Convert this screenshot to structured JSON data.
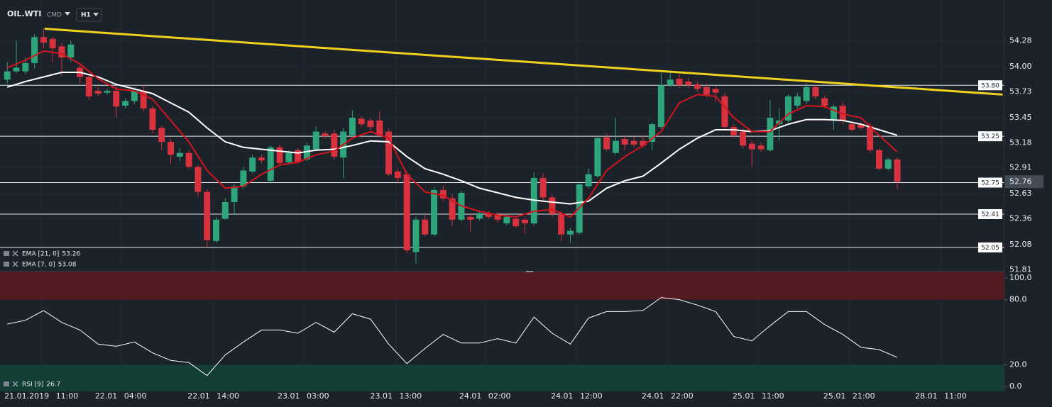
{
  "header": {
    "symbol": "OIL.WTI",
    "kind": "CMD",
    "timeframe": "H1"
  },
  "chart_data": {
    "type": "candlestick",
    "up_color": "#2ea57b",
    "down_color": "#d9323f",
    "candles": [
      [
        53.86,
        54.05,
        53.82,
        53.95
      ],
      [
        53.95,
        54.28,
        53.93,
        53.99
      ],
      [
        53.95,
        54.1,
        53.92,
        54.04
      ],
      [
        54.04,
        54.35,
        53.98,
        54.32
      ],
      [
        54.32,
        54.41,
        54.2,
        54.26
      ],
      [
        54.3,
        54.32,
        54.05,
        54.2
      ],
      [
        54.22,
        54.26,
        53.9,
        54.1
      ],
      [
        54.1,
        54.28,
        54.05,
        54.24
      ],
      [
        53.99,
        54.02,
        53.82,
        53.89
      ],
      [
        53.89,
        53.92,
        53.64,
        53.68
      ],
      [
        53.74,
        53.78,
        53.68,
        53.71
      ],
      [
        53.72,
        53.76,
        53.7,
        53.74
      ],
      [
        53.74,
        53.78,
        53.45,
        53.57
      ],
      [
        53.58,
        53.66,
        53.55,
        53.63
      ],
      [
        53.63,
        53.78,
        53.6,
        53.74
      ],
      [
        53.74,
        53.8,
        53.52,
        53.55
      ],
      [
        53.55,
        53.58,
        53.28,
        53.32
      ],
      [
        53.34,
        53.37,
        53.1,
        53.19
      ],
      [
        53.19,
        53.22,
        52.95,
        53.05
      ],
      [
        53.03,
        53.12,
        52.98,
        53.07
      ],
      [
        53.07,
        53.1,
        52.9,
        52.92
      ],
      [
        52.92,
        52.94,
        52.6,
        52.65
      ],
      [
        52.65,
        52.68,
        52.05,
        52.13
      ],
      [
        52.12,
        52.38,
        52.1,
        52.35
      ],
      [
        52.36,
        52.58,
        52.35,
        52.54
      ],
      [
        52.54,
        52.74,
        52.4,
        52.71
      ],
      [
        52.71,
        52.92,
        52.68,
        52.88
      ],
      [
        52.87,
        53.05,
        52.85,
        53.02
      ],
      [
        53.02,
        53.05,
        52.96,
        52.99
      ],
      [
        52.77,
        53.15,
        52.74,
        53.13
      ],
      [
        53.13,
        53.16,
        52.94,
        52.96
      ],
      [
        52.97,
        53.1,
        52.95,
        53.07
      ],
      [
        53.1,
        53.12,
        52.95,
        52.97
      ],
      [
        53.0,
        53.18,
        52.98,
        53.15
      ],
      [
        53.11,
        53.35,
        53.09,
        53.3
      ],
      [
        53.28,
        53.31,
        53.22,
        53.25
      ],
      [
        53.28,
        53.32,
        53.0,
        53.03
      ],
      [
        53.02,
        53.34,
        52.8,
        53.3
      ],
      [
        53.26,
        53.53,
        53.24,
        53.45
      ],
      [
        53.44,
        53.47,
        53.35,
        53.38
      ],
      [
        53.42,
        53.45,
        53.32,
        53.35
      ],
      [
        53.42,
        53.52,
        53.24,
        53.26
      ],
      [
        53.3,
        53.33,
        52.82,
        52.84
      ],
      [
        52.87,
        52.9,
        52.74,
        52.8
      ],
      [
        52.84,
        52.87,
        51.99,
        52.02
      ],
      [
        52.0,
        52.38,
        51.88,
        52.35
      ],
      [
        52.35,
        52.4,
        52.17,
        52.19
      ],
      [
        52.19,
        52.7,
        52.17,
        52.67
      ],
      [
        52.67,
        52.72,
        52.55,
        52.58
      ],
      [
        52.58,
        52.62,
        52.28,
        52.35
      ],
      [
        52.35,
        52.66,
        52.33,
        52.64
      ],
      [
        52.38,
        52.42,
        52.22,
        52.35
      ],
      [
        52.36,
        52.45,
        52.34,
        52.42
      ],
      [
        52.42,
        52.45,
        52.36,
        52.38
      ],
      [
        52.4,
        52.43,
        52.32,
        52.35
      ],
      [
        52.31,
        52.41,
        52.29,
        52.38
      ],
      [
        52.36,
        52.39,
        52.26,
        52.28
      ],
      [
        52.35,
        52.38,
        52.2,
        52.31
      ],
      [
        52.31,
        52.86,
        52.28,
        52.8
      ],
      [
        52.8,
        52.85,
        52.56,
        52.59
      ],
      [
        52.59,
        52.62,
        52.38,
        52.41
      ],
      [
        52.41,
        52.44,
        52.12,
        52.19
      ],
      [
        52.19,
        52.26,
        52.1,
        52.23
      ],
      [
        52.21,
        52.76,
        52.19,
        52.73
      ],
      [
        52.71,
        52.9,
        52.69,
        52.84
      ],
      [
        52.82,
        53.26,
        52.8,
        53.23
      ],
      [
        53.24,
        53.28,
        53.09,
        53.11
      ],
      [
        53.07,
        53.45,
        53.05,
        53.2
      ],
      [
        53.22,
        53.26,
        53.1,
        53.16
      ],
      [
        53.2,
        53.24,
        53.13,
        53.16
      ],
      [
        53.2,
        53.26,
        53.12,
        53.15
      ],
      [
        53.19,
        53.4,
        53.1,
        53.38
      ],
      [
        53.35,
        53.93,
        53.33,
        53.8
      ],
      [
        53.8,
        53.93,
        53.78,
        53.86
      ],
      [
        53.87,
        53.92,
        53.77,
        53.8
      ],
      [
        53.84,
        53.88,
        53.77,
        53.8
      ],
      [
        53.81,
        53.84,
        53.73,
        53.76
      ],
      [
        53.78,
        53.82,
        53.67,
        53.7
      ],
      [
        53.76,
        53.79,
        53.62,
        53.72
      ],
      [
        53.68,
        53.72,
        53.32,
        53.35
      ],
      [
        53.35,
        53.38,
        53.23,
        53.26
      ],
      [
        53.3,
        53.33,
        53.12,
        53.15
      ],
      [
        53.17,
        53.2,
        52.92,
        53.11
      ],
      [
        53.15,
        53.18,
        53.08,
        53.11
      ],
      [
        53.1,
        53.64,
        53.08,
        53.45
      ],
      [
        53.38,
        53.55,
        53.2,
        53.42
      ],
      [
        53.42,
        53.7,
        53.4,
        53.68
      ],
      [
        53.58,
        53.72,
        53.55,
        53.68
      ],
      [
        53.63,
        53.82,
        53.6,
        53.78
      ],
      [
        53.78,
        53.8,
        53.65,
        53.68
      ],
      [
        53.66,
        53.69,
        53.55,
        53.58
      ],
      [
        53.42,
        53.59,
        53.32,
        53.57
      ],
      [
        53.58,
        53.62,
        53.38,
        53.42
      ],
      [
        53.38,
        53.4,
        53.3,
        53.32
      ],
      [
        53.38,
        53.4,
        53.32,
        53.34
      ],
      [
        53.36,
        53.4,
        53.07,
        53.1
      ],
      [
        53.1,
        53.12,
        52.88,
        52.9
      ],
      [
        52.9,
        53.02,
        52.88,
        53.0
      ],
      [
        53.0,
        53.02,
        52.68,
        52.76
      ]
    ],
    "xlim": [
      -0.8,
      109.8
    ],
    "xticks": [
      {
        "value": 3.75,
        "label": "21.01.2019 11:00"
      },
      {
        "value": 12.5,
        "label": "22.01 04:00"
      },
      {
        "value": 22.7,
        "label": "22.01 14:00"
      },
      {
        "value": 32.6,
        "label": "23.01 03:00"
      },
      {
        "value": 42.8,
        "label": "23.01 13:00"
      },
      {
        "value": 52.6,
        "label": "24.01 02:00"
      },
      {
        "value": 62.7,
        "label": "24.01 12:00"
      },
      {
        "value": 72.7,
        "label": "24.01 22:00"
      },
      {
        "value": 82.7,
        "label": "25.01 11:00"
      },
      {
        "value": 92.7,
        "label": "25.01 21:00"
      },
      {
        "value": 102.8,
        "label": "28.01 11:00"
      }
    ],
    "ylim": [
      51.79,
      54.72
    ],
    "yticks": [
      54.28,
      {
        "value": 54,
        "label": "54.00"
      },
      53.73,
      53.45,
      53.18,
      52.91,
      52.63,
      52.36,
      52.08,
      51.81
    ],
    "grid": true,
    "levels": [
      {
        "value": 53.8,
        "label": "53.80"
      },
      53.25,
      52.75,
      52.41,
      52.05
    ],
    "trendline": {
      "x": [
        4.1,
        109.6
      ],
      "y": [
        54.41,
        53.7
      ],
      "color": "#f0d21c"
    },
    "ema_21": {
      "name": "EMA [21, 0]",
      "color": "#ffffff",
      "x": [
        0,
        2,
        4,
        6,
        8,
        10,
        12,
        14,
        16,
        18,
        20,
        22,
        24,
        26,
        28,
        30,
        32,
        34,
        36,
        38,
        40,
        42,
        44,
        46,
        48,
        50,
        52,
        54,
        56,
        58,
        60,
        62,
        64,
        66,
        68,
        70,
        72,
        74,
        76,
        78,
        80,
        82,
        84,
        86,
        88,
        90,
        92,
        94,
        96,
        98
      ],
      "values": [
        53.78,
        53.84,
        53.89,
        53.94,
        53.94,
        53.89,
        53.81,
        53.76,
        53.71,
        53.61,
        53.51,
        53.34,
        53.19,
        53.13,
        53.11,
        53.09,
        53.07,
        53.1,
        53.11,
        53.15,
        53.2,
        53.19,
        53.03,
        52.9,
        52.84,
        52.77,
        52.69,
        52.64,
        52.59,
        52.56,
        52.54,
        52.52,
        52.55,
        52.69,
        52.77,
        52.82,
        52.96,
        53.11,
        53.23,
        53.32,
        53.32,
        53.3,
        53.31,
        53.38,
        53.43,
        53.43,
        53.42,
        53.38,
        53.32,
        53.26
      ]
    },
    "ema_7": {
      "name": "EMA [7, 0]",
      "color": "#d4151d",
      "x": [
        0,
        2,
        4,
        6,
        8,
        10,
        12,
        14,
        16,
        18,
        20,
        22,
        24,
        26,
        28,
        30,
        32,
        34,
        36,
        38,
        40,
        42,
        44,
        46,
        48,
        50,
        52,
        54,
        56,
        58,
        60,
        62,
        64,
        66,
        68,
        70,
        72,
        74,
        76,
        78,
        80,
        82,
        84,
        86,
        88,
        90,
        92,
        94,
        96,
        98
      ],
      "values": [
        53.99,
        54.07,
        54.17,
        54.14,
        54.03,
        53.87,
        53.76,
        53.74,
        53.65,
        53.42,
        53.19,
        52.88,
        52.69,
        52.71,
        52.84,
        52.94,
        52.97,
        53.05,
        53.09,
        53.23,
        53.3,
        53.23,
        52.84,
        52.65,
        52.61,
        52.5,
        52.44,
        52.4,
        52.38,
        52.44,
        52.46,
        52.38,
        52.58,
        52.88,
        53.03,
        53.15,
        53.3,
        53.61,
        53.7,
        53.68,
        53.45,
        53.3,
        53.3,
        53.49,
        53.58,
        53.57,
        53.49,
        53.45,
        53.26,
        53.08
      ]
    },
    "rsi": {
      "name": "RSI [9]",
      "color": "#ffffff",
      "ylim": [
        -4.6,
        105.9
      ],
      "yticks": [
        {
          "value": 100,
          "label": "100.0"
        },
        {
          "value": 80,
          "label": "80.0"
        },
        {
          "value": 20,
          "label": "20.0"
        },
        {
          "value": 0,
          "label": "0.0"
        }
      ],
      "overbought_color": "#531a1f",
      "oversold_color": "#123e35",
      "x": [
        0,
        2,
        4,
        6,
        8,
        10,
        12,
        14,
        16,
        18,
        20,
        22,
        24,
        26,
        28,
        30,
        32,
        34,
        36,
        38,
        40,
        42,
        44,
        46,
        48,
        50,
        52,
        54,
        56,
        58,
        60,
        62,
        64,
        66,
        68,
        70,
        72,
        74,
        76,
        78,
        80,
        82,
        84,
        86,
        88,
        90,
        92,
        94,
        96,
        98
      ],
      "values": [
        57.5,
        61,
        70,
        59,
        52,
        39,
        37,
        41,
        31,
        24,
        22,
        10,
        29,
        41,
        52,
        52,
        49,
        59,
        50,
        67,
        62,
        39,
        21,
        35,
        48,
        40,
        40,
        44,
        40,
        64,
        49,
        39,
        63,
        69,
        69,
        70,
        82,
        80,
        75,
        69,
        46,
        42,
        56,
        69,
        69,
        57,
        48,
        36,
        34,
        26.7
      ]
    }
  }
}
